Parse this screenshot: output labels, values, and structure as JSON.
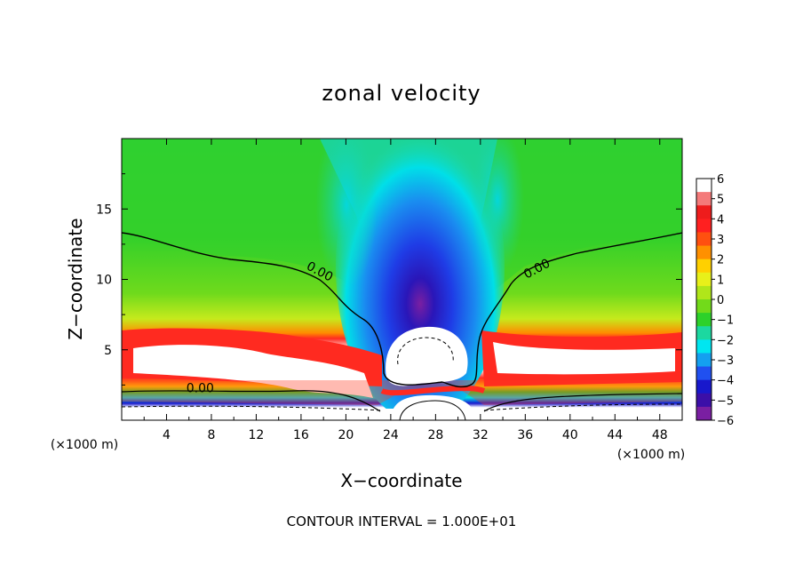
{
  "chart_data": {
    "type": "heatmap",
    "title": "zonal velocity",
    "xlabel": "X−coordinate",
    "ylabel": "Z−coordinate",
    "x_unit_label": "(×1000 m)",
    "xlim": [
      0,
      50
    ],
    "ylim": [
      0,
      20
    ],
    "xticks": [
      4,
      8,
      12,
      16,
      20,
      24,
      28,
      32,
      36,
      40,
      44,
      48
    ],
    "yticks": [
      5,
      10,
      15
    ],
    "colorbar": {
      "range": [
        -6,
        6
      ],
      "ticks": [
        "6",
        "5",
        "4",
        "3",
        "2",
        "1",
        "0",
        "−1",
        "−2",
        "−3",
        "−4",
        "−5",
        "−6"
      ],
      "colors": [
        "#1a7a1a",
        "#7a1fa2",
        "#3b0fa8",
        "#1818cc",
        "#2050f0",
        "#14a0f0",
        "#00e6f0",
        "#1cd8a0",
        "#2dd12a",
        "#72da1a",
        "#b0e61a",
        "#e8f01a",
        "#ffd000",
        "#ff9000",
        "#ff5010",
        "#ff2020",
        "#ee1c1c",
        "#f47a7a",
        "#ffffff"
      ]
    },
    "contour_labels": [
      {
        "text": "0.00",
        "x": 17.5,
        "z": 10.3
      },
      {
        "text": "0.00",
        "x": 37.2,
        "z": 10.5
      },
      {
        "text": "0.00",
        "x": 7.0,
        "z": 2.0
      }
    ],
    "footnote": "CONTOUR INTERVAL = 1.000E+01"
  }
}
